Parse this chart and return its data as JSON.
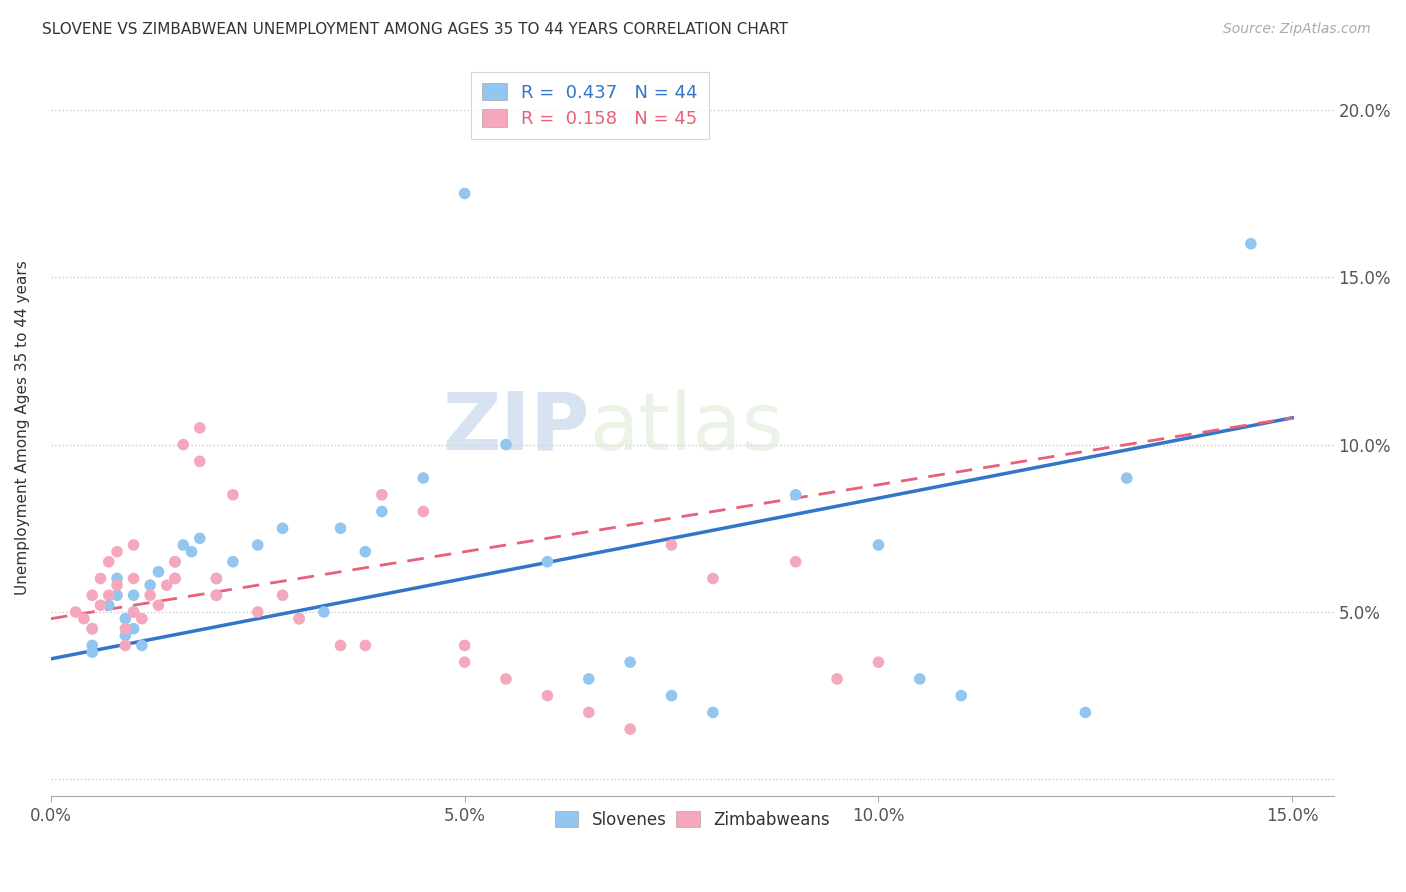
{
  "title": "SLOVENE VS ZIMBABWEAN UNEMPLOYMENT AMONG AGES 35 TO 44 YEARS CORRELATION CHART",
  "source": "Source: ZipAtlas.com",
  "ylabel": "Unemployment Among Ages 35 to 44 years",
  "xlim": [
    0.0,
    0.155
  ],
  "ylim": [
    -0.005,
    0.215
  ],
  "xticks": [
    0.0,
    0.05,
    0.1,
    0.15
  ],
  "xtick_labels": [
    "0.0%",
    "5.0%",
    "10.0%",
    "15.0%"
  ],
  "yticks": [
    0.0,
    0.05,
    0.1,
    0.15,
    0.2
  ],
  "ytick_labels": [
    "",
    "5.0%",
    "10.0%",
    "15.0%",
    "20.0%"
  ],
  "slovene_color": "#92c5f0",
  "zimbabwean_color": "#f5a8bc",
  "slovene_line_color": "#3375c8",
  "zimbabwean_line_color": "#e8607a",
  "legend_label_1": "R =  0.437   N = 44",
  "legend_label_2": "R =  0.158   N = 45",
  "watermark_1": "ZIP",
  "watermark_2": "atlas",
  "slovene_x": [
    0.005,
    0.005,
    0.005,
    0.007,
    0.008,
    0.008,
    0.009,
    0.009,
    0.01,
    0.01,
    0.01,
    0.011,
    0.012,
    0.013,
    0.015,
    0.015,
    0.016,
    0.017,
    0.018,
    0.02,
    0.02,
    0.022,
    0.025,
    0.028,
    0.03,
    0.033,
    0.035,
    0.038,
    0.04,
    0.045,
    0.05,
    0.055,
    0.06,
    0.065,
    0.07,
    0.075,
    0.08,
    0.09,
    0.1,
    0.105,
    0.11,
    0.125,
    0.13,
    0.145
  ],
  "slovene_y": [
    0.045,
    0.04,
    0.038,
    0.052,
    0.06,
    0.055,
    0.048,
    0.043,
    0.05,
    0.055,
    0.045,
    0.04,
    0.058,
    0.062,
    0.065,
    0.06,
    0.07,
    0.068,
    0.072,
    0.06,
    0.055,
    0.065,
    0.07,
    0.075,
    0.048,
    0.05,
    0.075,
    0.068,
    0.08,
    0.09,
    0.175,
    0.1,
    0.065,
    0.03,
    0.035,
    0.025,
    0.02,
    0.085,
    0.07,
    0.03,
    0.025,
    0.02,
    0.09,
    0.16
  ],
  "zimbabwean_x": [
    0.003,
    0.004,
    0.005,
    0.005,
    0.006,
    0.006,
    0.007,
    0.007,
    0.008,
    0.008,
    0.009,
    0.009,
    0.01,
    0.01,
    0.01,
    0.011,
    0.012,
    0.013,
    0.014,
    0.015,
    0.015,
    0.016,
    0.018,
    0.018,
    0.02,
    0.02,
    0.022,
    0.025,
    0.028,
    0.03,
    0.035,
    0.038,
    0.04,
    0.045,
    0.05,
    0.05,
    0.055,
    0.06,
    0.065,
    0.07,
    0.075,
    0.08,
    0.09,
    0.095,
    0.1
  ],
  "zimbabwean_y": [
    0.05,
    0.048,
    0.055,
    0.045,
    0.06,
    0.052,
    0.065,
    0.055,
    0.068,
    0.058,
    0.045,
    0.04,
    0.05,
    0.06,
    0.07,
    0.048,
    0.055,
    0.052,
    0.058,
    0.065,
    0.06,
    0.1,
    0.105,
    0.095,
    0.06,
    0.055,
    0.085,
    0.05,
    0.055,
    0.048,
    0.04,
    0.04,
    0.085,
    0.08,
    0.035,
    0.04,
    0.03,
    0.025,
    0.02,
    0.015,
    0.07,
    0.06,
    0.065,
    0.03,
    0.035
  ],
  "slovene_trend": [
    0.036,
    0.108
  ],
  "zimbabwean_trend": [
    0.048,
    0.108
  ]
}
